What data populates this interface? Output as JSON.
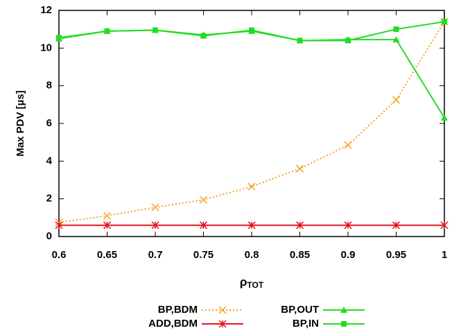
{
  "chart_data": {
    "type": "line",
    "xlabel": "ρ",
    "xlabel_sub": "TOT",
    "ylabel": "Max PDV [µs]",
    "x": [
      0.6,
      0.65,
      0.7,
      0.75,
      0.8,
      0.85,
      0.9,
      0.95,
      1
    ],
    "xlim": [
      0.6,
      1
    ],
    "xticks": [
      0.6,
      0.65,
      0.7,
      0.75,
      0.8,
      0.85,
      0.9,
      0.95,
      1
    ],
    "ylim": [
      0,
      12
    ],
    "yticks": [
      0,
      2,
      4,
      6,
      8,
      10,
      12
    ],
    "series": [
      {
        "name": "BP,BDM",
        "color": "#f5a020",
        "dash": true,
        "marker": "x",
        "values": [
          0.75,
          1.1,
          1.55,
          1.95,
          2.65,
          3.6,
          4.85,
          7.25,
          11.4
        ]
      },
      {
        "name": "ADD,BDM",
        "color": "#e8141c",
        "dash": false,
        "marker": "star",
        "values": [
          0.6,
          0.6,
          0.6,
          0.6,
          0.6,
          0.6,
          0.6,
          0.6,
          0.6
        ]
      },
      {
        "name": "BP,OUT",
        "color": "#22dd22",
        "dash": false,
        "marker": "triangle",
        "values": [
          10.5,
          10.9,
          10.95,
          10.7,
          10.9,
          10.4,
          10.45,
          10.45,
          6.3
        ]
      },
      {
        "name": "BP,IN",
        "color": "#22dd22",
        "dash": false,
        "marker": "square",
        "values": [
          10.55,
          10.9,
          10.95,
          10.65,
          10.95,
          10.4,
          10.4,
          11.0,
          11.4
        ]
      }
    ]
  }
}
